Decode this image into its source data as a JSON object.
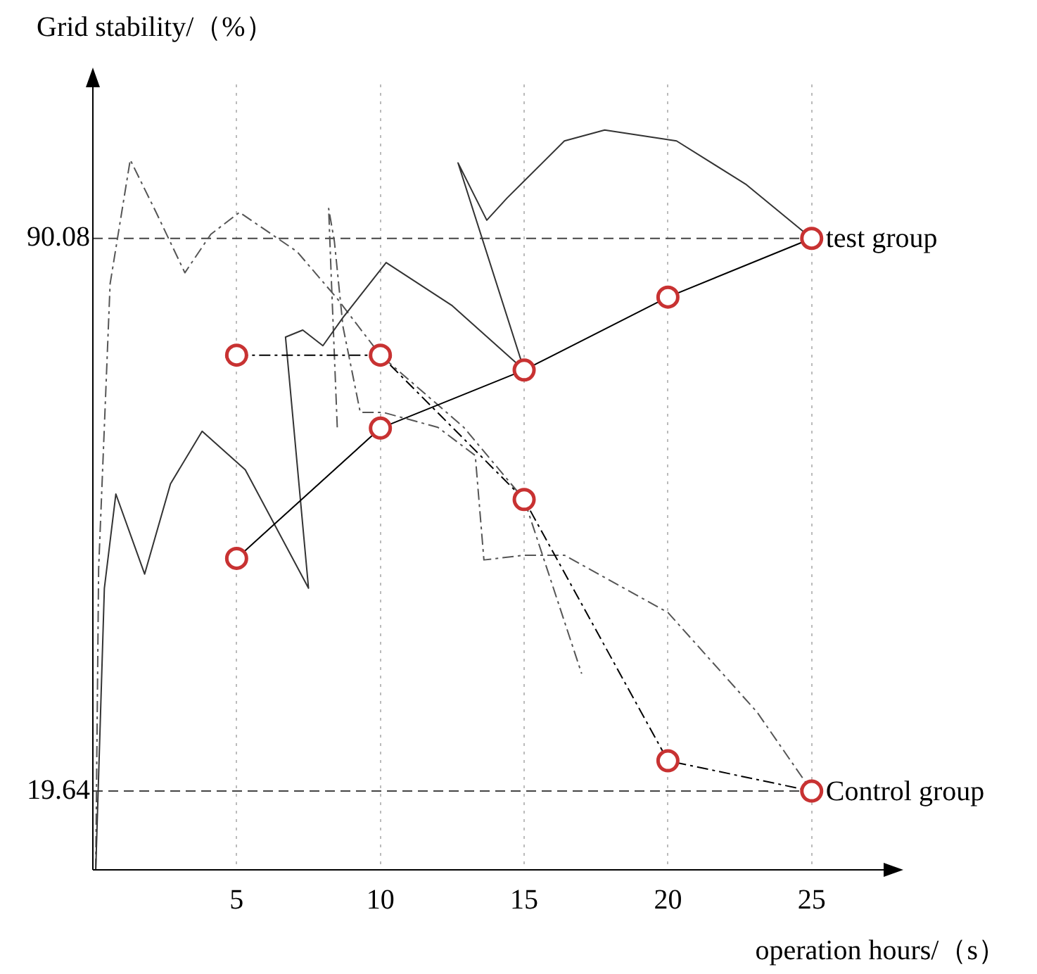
{
  "chart_data": {
    "type": "line",
    "ylabel": "Grid stability/（%）",
    "xlabel": "operation hours/（s）",
    "xlim": [
      0,
      27.6
    ],
    "xticks": [
      5,
      10,
      15,
      20,
      25
    ],
    "ylim": [
      9.6,
      109.7
    ],
    "yticks": [
      19.64,
      90.08
    ],
    "grid": "x",
    "legend": false,
    "marker": "circle",
    "ref_lines": [
      {
        "axis": "y",
        "value": 90.08,
        "line_style": "dashed"
      },
      {
        "axis": "y",
        "value": 19.64,
        "line_style": "dashed"
      }
    ],
    "series": [
      {
        "name": "test group",
        "color": "#c83232",
        "line_style": "solid",
        "x": [
          5,
          10,
          15,
          20,
          25
        ],
        "values": [
          49.3,
          65.9,
          73.3,
          82.6,
          90.08
        ]
      },
      {
        "name": "Control group",
        "color": "#c83232",
        "line_style": "dashed",
        "x": [
          5,
          10,
          15,
          20,
          25
        ],
        "values": [
          75.2,
          75.2,
          56.8,
          23.5,
          19.64
        ]
      },
      {
        "color": "#333333",
        "marker": "none",
        "line_style": "solid",
        "x": [
          0.1,
          0.4,
          0.8,
          1.8,
          2.7,
          3.8,
          5.3,
          7.5,
          6.7,
          7.3,
          8.0,
          8.7,
          10.2,
          12.5,
          15,
          12.7,
          13.7,
          14.4,
          16.4,
          17.8,
          20.3,
          22.7,
          25
        ],
        "values": [
          9.6,
          45.5,
          57.5,
          47.3,
          58.8,
          65.5,
          60.6,
          45.5,
          77.5,
          78.4,
          76.4,
          80,
          87.0,
          81.5,
          73.3,
          99.7,
          92.4,
          95.2,
          102.5,
          103.9,
          102.5,
          97.0,
          90.08
        ]
      },
      {
        "color": "#555555",
        "marker": "none",
        "line_style": "dashed",
        "x": [
          0.1,
          0.2,
          0.6,
          1.3,
          2.2,
          3.2,
          4.1,
          5.1,
          7.1,
          8.5,
          10,
          12.9,
          15,
          17
        ],
        "values": [
          9.6,
          47.9,
          84.3,
          100.1,
          93.4,
          85.7,
          90.6,
          93.4,
          88.4,
          82.4,
          75.2,
          66.0,
          56.8,
          34.6
        ]
      },
      {
        "color": "#555555",
        "marker": "none",
        "line_style": "dashed",
        "x": [
          8.5,
          8.3,
          8.2,
          8.4,
          8.7,
          9.3,
          10.1,
          12.0,
          13.3,
          13.6,
          15,
          16.4,
          20,
          23.1,
          25
        ],
        "values": [
          66.0,
          84.3,
          93.9,
          89.7,
          78.8,
          67.9,
          67.9,
          66.0,
          62.4,
          49.1,
          49.7,
          49.7,
          42.4,
          29.7,
          19.64
        ]
      }
    ]
  }
}
